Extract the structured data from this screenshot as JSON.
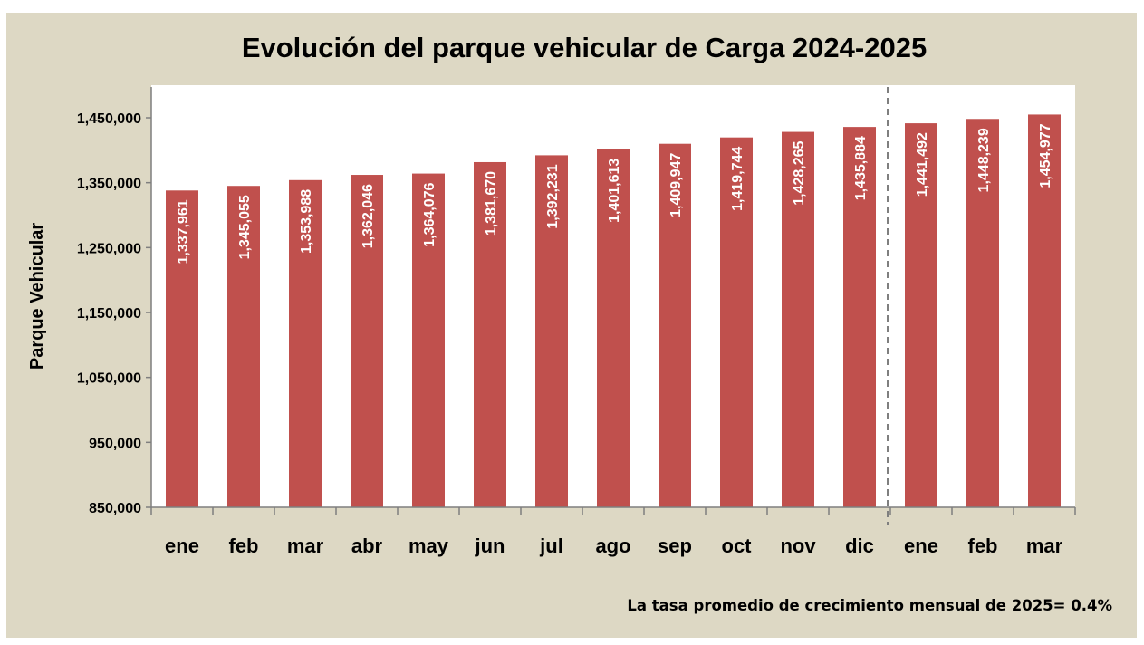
{
  "chart_data": {
    "type": "bar",
    "title": "Evolución del parque vehicular de Carga 2024-2025",
    "ylabel": "Parque Vehicular",
    "xlabel": "",
    "ylim": [
      850000,
      1500000
    ],
    "yticks": [
      850000,
      950000,
      1050000,
      1150000,
      1250000,
      1350000,
      1450000
    ],
    "ytick_labels": [
      "850,000",
      "950,000",
      "1,050,000",
      "1,150,000",
      "1,250,000",
      "1,350,000",
      "1,450,000"
    ],
    "categories": [
      "ene",
      "feb",
      "mar",
      "abr",
      "may",
      "jun",
      "jul",
      "ago",
      "sep",
      "oct",
      "nov",
      "dic",
      "ene",
      "feb",
      "mar"
    ],
    "values": [
      1337961,
      1345055,
      1353988,
      1362046,
      1364076,
      1381670,
      1392231,
      1401613,
      1409947,
      1419744,
      1428265,
      1435884,
      1441492,
      1448239,
      1454977
    ],
    "value_labels": [
      "1,337,961",
      "1,345,055",
      "1,353,988",
      "1,362,046",
      "1,364,076",
      "1,381,670",
      "1,392,231",
      "1,401,613",
      "1,409,947",
      "1,419,744",
      "1,428,265",
      "1,435,884",
      "1,441,492",
      "1,448,239",
      "1,454,977"
    ],
    "bar_color": "#c0504d",
    "divider_after_index": 11,
    "grid": false,
    "legend": "none",
    "annotation": "La tasa promedio de crecimiento mensual de 2025= 0.4%"
  }
}
